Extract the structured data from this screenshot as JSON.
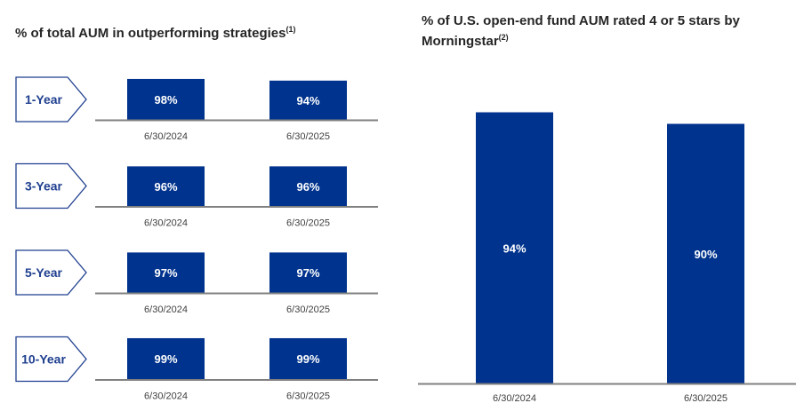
{
  "chart_data": [
    {
      "type": "bar",
      "title": "% of total AUM in outperforming strategies",
      "title_note": "(1)",
      "categories": [
        "6/30/2024",
        "6/30/2025"
      ],
      "panels": [
        {
          "label": "1-Year",
          "values": [
            98,
            94
          ],
          "value_labels": [
            "98%",
            "94%"
          ]
        },
        {
          "label": "3-Year",
          "values": [
            96,
            96
          ],
          "value_labels": [
            "96%",
            "96%"
          ]
        },
        {
          "label": "5-Year",
          "values": [
            97,
            97
          ],
          "value_labels": [
            "97%",
            "97%"
          ]
        },
        {
          "label": "10-Year",
          "values": [
            99,
            99
          ],
          "value_labels": [
            "99%",
            "99%"
          ]
        }
      ],
      "ylim": [
        0,
        100
      ],
      "grid": false,
      "bar_color": "#00338D"
    },
    {
      "type": "bar",
      "title": "% of U.S. open-end fund AUM rated 4 or 5 stars by Morningstar",
      "title_note": "(2)",
      "categories": [
        "6/30/2024",
        "6/30/2025"
      ],
      "values": [
        94,
        90
      ],
      "value_labels": [
        "94%",
        "90%"
      ],
      "ylim": [
        0,
        100
      ],
      "grid": false,
      "bar_color": "#00338D"
    }
  ]
}
